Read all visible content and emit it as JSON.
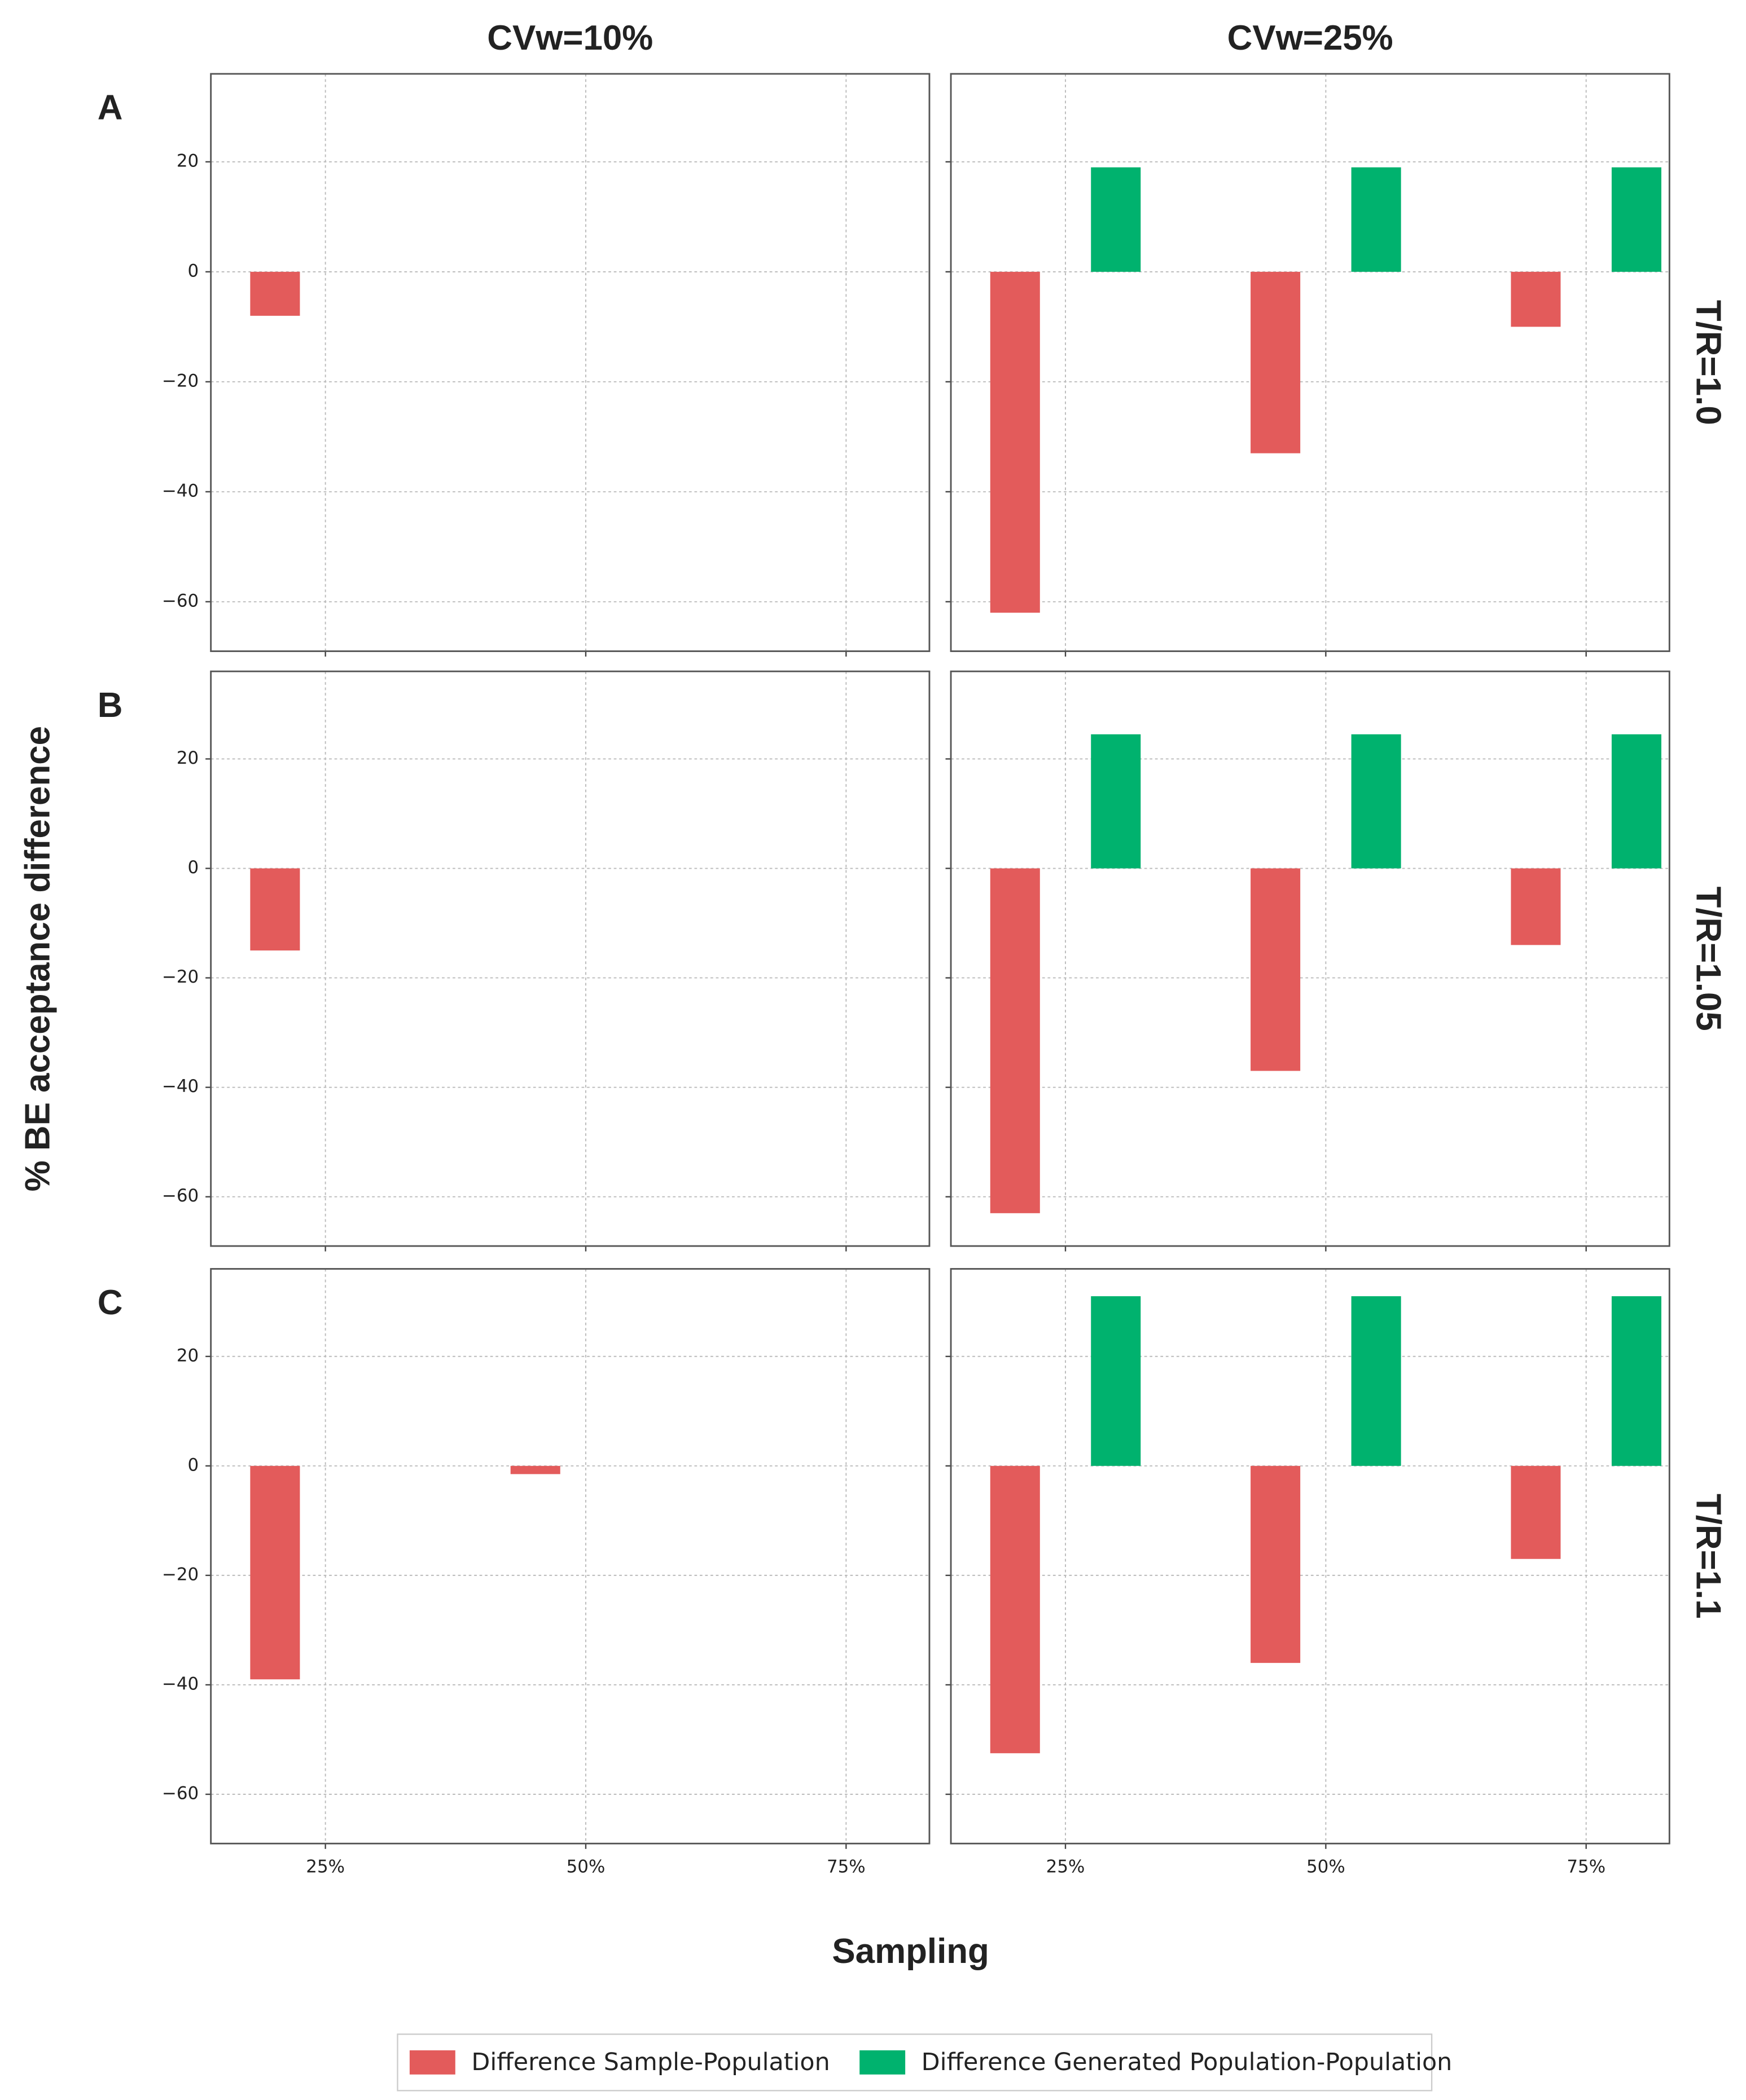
{
  "xlabel": "Sampling",
  "ylabel": "% BE acceptance difference",
  "chart_data": [
    {
      "type": "bar",
      "title": "CVw=10%",
      "panel_label": "A",
      "x": [
        25,
        50,
        75
      ],
      "xlim": [
        14,
        83
      ],
      "xticks": [
        {
          "value": 25,
          "label": "25%"
        },
        {
          "value": 50,
          "label": "50%"
        },
        {
          "value": 75,
          "label": "75%"
        }
      ],
      "ylim": [
        -69,
        36
      ],
      "yticks": [
        {
          "value": -60,
          "label": "−60"
        },
        {
          "value": -40,
          "label": "−40"
        },
        {
          "value": -20,
          "label": "−20"
        },
        0,
        20
      ],
      "grid": true,
      "series": [
        {
          "name": "Difference Sample-Population",
          "color": "#e35b5b",
          "values": [
            -8,
            0,
            0
          ]
        },
        {
          "name": "Difference Generated Population-Population",
          "color": "#00b26e",
          "values": [
            0,
            0,
            0
          ]
        }
      ]
    },
    {
      "type": "bar",
      "title": "CVw=25%",
      "row_label": "T/R=1.0",
      "x": [
        25,
        50,
        75
      ],
      "xlim": [
        14,
        83
      ],
      "xticks": [
        {
          "value": 25,
          "label": "25%"
        },
        {
          "value": 50,
          "label": "50%"
        },
        {
          "value": 75,
          "label": "75%"
        }
      ],
      "ylim": [
        -69,
        36
      ],
      "yticks": [
        {
          "value": -60,
          "label": "−60"
        },
        {
          "value": -40,
          "label": "−40"
        },
        {
          "value": -20,
          "label": "−20"
        },
        0,
        20
      ],
      "grid": true,
      "series": [
        {
          "name": "Difference Sample-Population",
          "color": "#e35b5b",
          "values": [
            -62,
            -33,
            -10
          ]
        },
        {
          "name": "Difference Generated Population-Population",
          "color": "#00b26e",
          "values": [
            19,
            19,
            19
          ]
        }
      ]
    },
    {
      "type": "bar",
      "panel_label": "B",
      "x": [
        25,
        50,
        75
      ],
      "xlim": [
        14,
        83
      ],
      "xticks": [
        {
          "value": 25,
          "label": "25%"
        },
        {
          "value": 50,
          "label": "50%"
        },
        {
          "value": 75,
          "label": "75%"
        }
      ],
      "ylim": [
        -69,
        36
      ],
      "yticks": [
        {
          "value": -60,
          "label": "−60"
        },
        {
          "value": -40,
          "label": "−40"
        },
        {
          "value": -20,
          "label": "−20"
        },
        0,
        20
      ],
      "grid": true,
      "series": [
        {
          "name": "Difference Sample-Population",
          "color": "#e35b5b",
          "values": [
            -15,
            0,
            0
          ]
        },
        {
          "name": "Difference Generated Population-Population",
          "color": "#00b26e",
          "values": [
            0,
            0,
            0
          ]
        }
      ]
    },
    {
      "type": "bar",
      "row_label": "T/R=1.05",
      "x": [
        25,
        50,
        75
      ],
      "xlim": [
        14,
        83
      ],
      "xticks": [
        {
          "value": 25,
          "label": "25%"
        },
        {
          "value": 50,
          "label": "50%"
        },
        {
          "value": 75,
          "label": "75%"
        }
      ],
      "ylim": [
        -69,
        36
      ],
      "yticks": [
        {
          "value": -60,
          "label": "−60"
        },
        {
          "value": -40,
          "label": "−40"
        },
        {
          "value": -20,
          "label": "−20"
        },
        0,
        20
      ],
      "grid": true,
      "series": [
        {
          "name": "Difference Sample-Population",
          "color": "#e35b5b",
          "values": [
            -63,
            -37,
            -14
          ]
        },
        {
          "name": "Difference Generated Population-Population",
          "color": "#00b26e",
          "values": [
            24.5,
            24.5,
            24.5
          ]
        }
      ]
    },
    {
      "type": "bar",
      "panel_label": "C",
      "x": [
        25,
        50,
        75
      ],
      "xlim": [
        14,
        83
      ],
      "xticks": [
        {
          "value": 25,
          "label": "25%"
        },
        {
          "value": 50,
          "label": "50%"
        },
        {
          "value": 75,
          "label": "75%"
        }
      ],
      "ylim": [
        -69,
        36
      ],
      "yticks": [
        {
          "value": -60,
          "label": "−60"
        },
        {
          "value": -40,
          "label": "−40"
        },
        {
          "value": -20,
          "label": "−20"
        },
        0,
        20
      ],
      "grid": true,
      "series": [
        {
          "name": "Difference Sample-Population",
          "color": "#e35b5b",
          "values": [
            -39,
            -1.5,
            0
          ]
        },
        {
          "name": "Difference Generated Population-Population",
          "color": "#00b26e",
          "values": [
            0,
            0,
            0
          ]
        }
      ]
    },
    {
      "type": "bar",
      "row_label": "T/R=1.1",
      "x": [
        25,
        50,
        75
      ],
      "xlim": [
        14,
        83
      ],
      "xticks": [
        {
          "value": 25,
          "label": "25%"
        },
        {
          "value": 50,
          "label": "50%"
        },
        {
          "value": 75,
          "label": "75%"
        }
      ],
      "ylim": [
        -69,
        36
      ],
      "yticks": [
        {
          "value": -60,
          "label": "−60"
        },
        {
          "value": -40,
          "label": "−40"
        },
        {
          "value": -20,
          "label": "−20"
        },
        0,
        20
      ],
      "grid": true,
      "series": [
        {
          "name": "Difference Sample-Population",
          "color": "#e35b5b",
          "values": [
            -52.5,
            -36,
            -17
          ]
        },
        {
          "name": "Difference Generated Population-Population",
          "color": "#00b26e",
          "values": [
            31,
            31,
            31
          ]
        }
      ]
    }
  ]
}
